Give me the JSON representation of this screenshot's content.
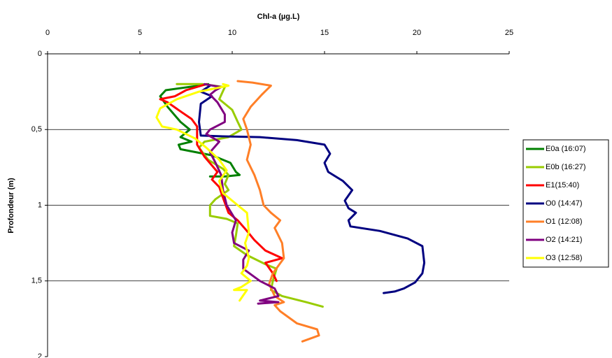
{
  "chart_data": {
    "type": "line",
    "x_label": "Chl-a (µg.L)",
    "y_label": "Profondeur (m)",
    "xlim": [
      0,
      25
    ],
    "xticks": [
      0,
      5,
      10,
      15,
      20,
      25
    ],
    "ylim": [
      0,
      2
    ],
    "y_reversed": true,
    "yticks": [
      0,
      {
        "value": 0.5,
        "label": "0,5"
      },
      1,
      {
        "value": 1.5,
        "label": "1,5"
      },
      2
    ],
    "grid": true,
    "legend": "right",
    "series": [
      {
        "name": "E0a (16:07)",
        "color": "#008000",
        "x": [
          8.7,
          8.2,
          7.6,
          6.4,
          6.1,
          6.5,
          7.2,
          7.7,
          7.2,
          7.8,
          7.1,
          7.2,
          8.9,
          9.9,
          10.2,
          10.4,
          9.6,
          8.8
        ],
        "y": [
          0.2,
          0.21,
          0.22,
          0.24,
          0.28,
          0.35,
          0.45,
          0.5,
          0.55,
          0.58,
          0.6,
          0.63,
          0.67,
          0.72,
          0.78,
          0.8,
          0.81,
          0.81
        ]
      },
      {
        "name": "E0b (16:27)",
        "color": "#99cc00",
        "x": [
          7,
          8.4,
          9.6,
          9.3,
          10,
          10.3,
          10.5,
          9.8,
          8.5,
          8.2,
          8.7,
          9.5,
          9.8,
          9.6,
          9.8,
          9.1,
          8.8,
          8.8,
          9.7,
          10.3,
          10.2,
          10.1,
          10.8,
          11.8,
          12.4,
          12.2,
          12.1,
          12.7,
          14,
          14.9
        ],
        "y": [
          0.2,
          0.2,
          0.22,
          0.3,
          0.37,
          0.45,
          0.5,
          0.55,
          0.58,
          0.62,
          0.7,
          0.76,
          0.8,
          0.86,
          0.9,
          0.96,
          1.0,
          1.07,
          1.09,
          1.12,
          1.2,
          1.27,
          1.33,
          1.39,
          1.42,
          1.5,
          1.56,
          1.6,
          1.64,
          1.67
        ]
      },
      {
        "name": "E1(15:40)",
        "color": "#ff0000",
        "x": [
          8.6,
          7.5,
          6.9,
          6.1,
          6.5,
          7.2,
          7.8,
          8.1,
          8.1,
          8.5,
          9.2,
          8.9,
          9.3,
          9.5,
          9.8,
          10.3,
          10.8,
          11.2,
          11.8,
          12.7,
          11.8,
          12.2,
          12.4
        ],
        "y": [
          0.2,
          0.24,
          0.28,
          0.3,
          0.32,
          0.38,
          0.43,
          0.48,
          0.6,
          0.68,
          0.78,
          0.83,
          0.88,
          0.95,
          1.05,
          1.1,
          1.17,
          1.23,
          1.3,
          1.35,
          1.38,
          1.45,
          1.5
        ]
      },
      {
        "name": "O0 (14:47)",
        "color": "#000080",
        "x": [
          8.8,
          8.3,
          8.9,
          8.3,
          8.2,
          8.3,
          9.5,
          11.5,
          13.5,
          15,
          15.3,
          15,
          15.2,
          16,
          16.5,
          16.1,
          16.3,
          16.7,
          16.3,
          16.4,
          18,
          19.5,
          20.3,
          20.4,
          20.3,
          19.9,
          19.3,
          18.8,
          18.2
        ],
        "y": [
          0.21,
          0.25,
          0.28,
          0.33,
          0.45,
          0.54,
          0.545,
          0.55,
          0.57,
          0.6,
          0.66,
          0.72,
          0.78,
          0.84,
          0.9,
          0.97,
          1.02,
          1.05,
          1.1,
          1.14,
          1.17,
          1.22,
          1.27,
          1.38,
          1.45,
          1.51,
          1.55,
          1.57,
          1.58
        ]
      },
      {
        "name": "O1 (12:08)",
        "color": "#ff7f27",
        "x": [
          10.3,
          11.1,
          12.1,
          11.6,
          11,
          10.6,
          10.8,
          11,
          10.8,
          11.2,
          11.5,
          11.7,
          12.1,
          12.6,
          12.3,
          12.7,
          12.8,
          12.2,
          12,
          12.3,
          12.8,
          12.3,
          12.6,
          13.5,
          14.6,
          14.7,
          13.8
        ],
        "y": [
          0.18,
          0.19,
          0.21,
          0.27,
          0.35,
          0.43,
          0.5,
          0.6,
          0.7,
          0.8,
          0.9,
          1.0,
          1.05,
          1.1,
          1.15,
          1.25,
          1.35,
          1.45,
          1.52,
          1.6,
          1.64,
          1.66,
          1.7,
          1.78,
          1.82,
          1.86,
          1.9
        ]
      },
      {
        "name": "O2 (14:21)",
        "color": "#800080",
        "x": [
          8.5,
          9.4,
          9.1,
          8.8,
          9.2,
          9.6,
          9.6,
          8.8,
          8.6,
          9.3,
          8.8,
          9.1,
          9.4,
          9.5,
          9.7,
          10.2,
          10,
          10.1,
          10.9,
          10.6,
          10.6,
          11.5,
          12.3,
          12.5,
          11.5,
          12.5,
          11.4
        ],
        "y": [
          0.2,
          0.22,
          0.24,
          0.27,
          0.32,
          0.4,
          0.45,
          0.5,
          0.53,
          0.58,
          0.65,
          0.72,
          0.8,
          0.9,
          1.0,
          1.1,
          1.18,
          1.25,
          1.3,
          1.36,
          1.42,
          1.5,
          1.55,
          1.6,
          1.63,
          1.64,
          1.65
        ]
      },
      {
        "name": "O3 (12:58)",
        "color": "#ffff00",
        "x": [
          9.5,
          9.8,
          8.2,
          7,
          6.1,
          5.9,
          6.2,
          7,
          8,
          8.6,
          9.3,
          9.7,
          9.3,
          9.5,
          10.3,
          10.8,
          10.9,
          10.7,
          10.9,
          10.8,
          10.5,
          11,
          10.5,
          10.1,
          10.8,
          10.4
        ],
        "y": [
          0.2,
          0.21,
          0.25,
          0.3,
          0.36,
          0.42,
          0.48,
          0.5,
          0.56,
          0.62,
          0.7,
          0.77,
          0.84,
          0.92,
          1.0,
          1.05,
          1.18,
          1.25,
          1.35,
          1.4,
          1.45,
          1.5,
          1.54,
          1.56,
          1.56,
          1.63
        ]
      }
    ]
  }
}
